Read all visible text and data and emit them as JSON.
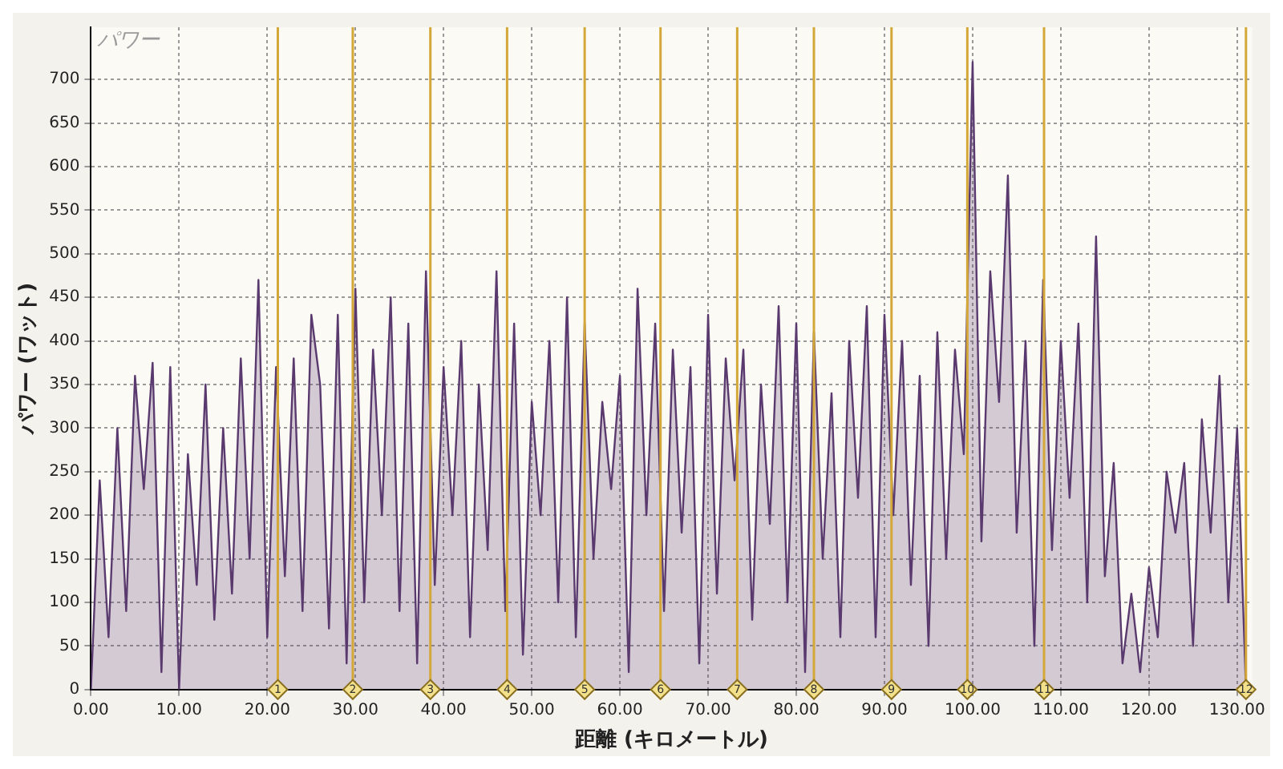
{
  "chart_data": {
    "type": "area",
    "title": "パワー",
    "xlabel": "距離 (キロメートル)",
    "ylabel": "パワー (ワット)",
    "x": [
      0,
      1,
      2,
      3,
      4,
      5,
      6,
      7,
      8,
      9,
      10,
      11,
      12,
      13,
      14,
      15,
      16,
      17,
      18,
      19,
      20,
      21,
      22,
      23,
      24,
      25,
      26,
      27,
      28,
      29,
      30,
      31,
      32,
      33,
      34,
      35,
      36,
      37,
      38,
      39,
      40,
      41,
      42,
      43,
      44,
      45,
      46,
      47,
      48,
      49,
      50,
      51,
      52,
      53,
      54,
      55,
      56,
      57,
      58,
      59,
      60,
      61,
      62,
      63,
      64,
      65,
      66,
      67,
      68,
      69,
      70,
      71,
      72,
      73,
      74,
      75,
      76,
      77,
      78,
      79,
      80,
      81,
      82,
      83,
      84,
      85,
      86,
      87,
      88,
      89,
      90,
      91,
      92,
      93,
      94,
      95,
      96,
      97,
      98,
      99,
      100,
      101,
      102,
      103,
      104,
      105,
      106,
      107,
      108,
      109,
      110,
      111,
      112,
      113,
      114,
      115,
      116,
      117,
      118,
      119,
      120,
      121,
      122,
      123,
      124,
      125,
      126,
      127,
      128,
      129,
      130,
      131
    ],
    "series": [
      {
        "color": "#5a3a6e",
        "values": [
          0,
          240,
          60,
          300,
          90,
          360,
          230,
          375,
          20,
          370,
          0,
          270,
          120,
          350,
          80,
          300,
          110,
          380,
          150,
          470,
          60,
          370,
          130,
          380,
          90,
          430,
          350,
          70,
          430,
          30,
          460,
          100,
          390,
          200,
          450,
          90,
          420,
          30,
          480,
          120,
          370,
          200,
          400,
          60,
          350,
          160,
          480,
          90,
          420,
          40,
          330,
          200,
          400,
          100,
          450,
          60,
          420,
          150,
          330,
          230,
          360,
          20,
          460,
          200,
          420,
          90,
          390,
          180,
          370,
          30,
          430,
          110,
          380,
          240,
          390,
          80,
          350,
          190,
          440,
          100,
          420,
          20,
          410,
          150,
          340,
          60,
          400,
          220,
          440,
          60,
          430,
          200,
          400,
          120,
          360,
          50,
          410,
          150,
          390,
          270,
          720,
          170,
          480,
          330,
          590,
          180,
          400,
          50,
          470,
          160,
          400,
          220,
          420,
          100,
          520,
          130,
          260,
          30,
          110,
          20,
          140,
          60,
          250,
          180,
          260,
          50,
          310,
          180,
          360,
          100,
          300,
          0
        ]
      }
    ],
    "xlim": [
      0,
      131.7
    ],
    "ylim": [
      0,
      760
    ],
    "xticks": [
      {
        "value": 0,
        "label": "0.00"
      },
      {
        "value": 10,
        "label": "10.00"
      },
      {
        "value": 20,
        "label": "20.00"
      },
      {
        "value": 30,
        "label": "30.00"
      },
      {
        "value": 40,
        "label": "40.00"
      },
      {
        "value": 50,
        "label": "50.00"
      },
      {
        "value": 60,
        "label": "60.00"
      },
      {
        "value": 70,
        "label": "70.00"
      },
      {
        "value": 80,
        "label": "80.00"
      },
      {
        "value": 90,
        "label": "90.00"
      },
      {
        "value": 100,
        "label": "100.00"
      },
      {
        "value": 110,
        "label": "110.00"
      },
      {
        "value": 120,
        "label": "120.00"
      },
      {
        "value": 130,
        "label": "130.00"
      }
    ],
    "yticks": [
      0,
      50,
      100,
      150,
      200,
      250,
      300,
      350,
      400,
      450,
      500,
      550,
      600,
      650,
      700
    ],
    "grid": true,
    "line_style": "solid",
    "ref_lines": [
      {
        "axis": "x",
        "value": 21.2,
        "color": "#d4a838"
      },
      {
        "axis": "x",
        "value": 29.7,
        "color": "#d4a838"
      },
      {
        "axis": "x",
        "value": 38.5,
        "color": "#d4a838"
      },
      {
        "axis": "x",
        "value": 47.2,
        "color": "#d4a838"
      },
      {
        "axis": "x",
        "value": 56.0,
        "color": "#d4a838"
      },
      {
        "axis": "x",
        "value": 64.6,
        "color": "#d4a838"
      },
      {
        "axis": "x",
        "value": 73.3,
        "color": "#d4a838"
      },
      {
        "axis": "x",
        "value": 82.0,
        "color": "#d4a838"
      },
      {
        "axis": "x",
        "value": 90.8,
        "color": "#d4a838"
      },
      {
        "axis": "x",
        "value": 99.4,
        "color": "#d4a838"
      },
      {
        "axis": "x",
        "value": 108.1,
        "color": "#d4a838"
      },
      {
        "axis": "x",
        "value": 131.0,
        "color": "#d4a838"
      }
    ],
    "annotations": [
      {
        "text": "1",
        "x": 21.2,
        "y": 0
      },
      {
        "text": "2",
        "x": 29.7,
        "y": 0
      },
      {
        "text": "3",
        "x": 38.5,
        "y": 0
      },
      {
        "text": "4",
        "x": 47.2,
        "y": 0
      },
      {
        "text": "5",
        "x": 56.0,
        "y": 0
      },
      {
        "text": "6",
        "x": 64.6,
        "y": 0
      },
      {
        "text": "7",
        "x": 73.3,
        "y": 0
      },
      {
        "text": "8",
        "x": 82.0,
        "y": 0
      },
      {
        "text": "9",
        "x": 90.8,
        "y": 0
      },
      {
        "text": "10",
        "x": 99.4,
        "y": 0
      },
      {
        "text": "11",
        "x": 108.1,
        "y": 0
      },
      {
        "text": "12",
        "x": 131.0,
        "y": 0
      }
    ]
  }
}
